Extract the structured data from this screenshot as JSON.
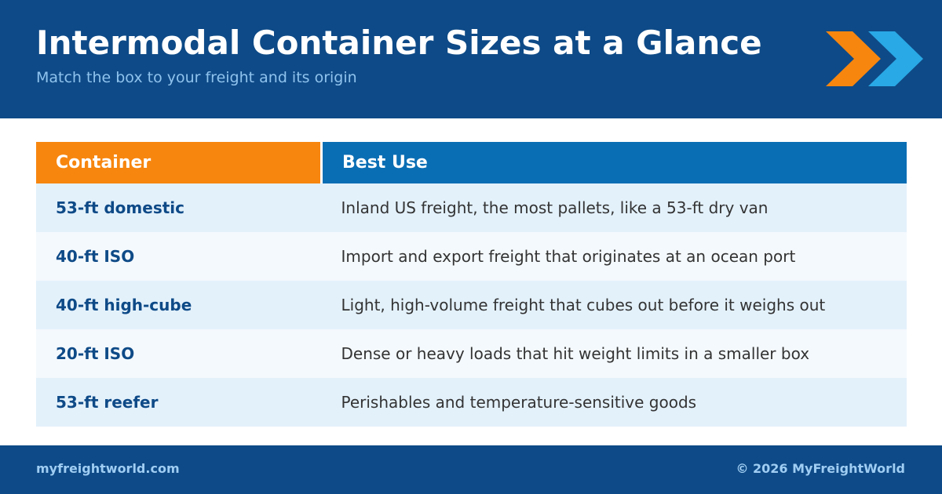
{
  "header": {
    "title": "Intermodal Container Sizes at a Glance",
    "subtitle": "Match the box to your freight and its origin"
  },
  "table": {
    "columns": [
      "Container",
      "Best Use"
    ],
    "rows": [
      [
        "53-ft domestic",
        "Inland US freight, the most pallets, like a 53-ft dry van"
      ],
      [
        "40-ft ISO",
        "Import and export freight that originates at an ocean port"
      ],
      [
        "40-ft high-cube",
        "Light, high-volume freight that cubes out before it weighs out"
      ],
      [
        "20-ft ISO",
        "Dense or heavy loads that hit weight limits in a smaller box"
      ],
      [
        "53-ft reefer",
        "Perishables and temperature-sensitive goods"
      ]
    ]
  },
  "footer": {
    "site": "myfreightworld.com",
    "copyright": "© 2026 MyFreightWorld"
  }
}
